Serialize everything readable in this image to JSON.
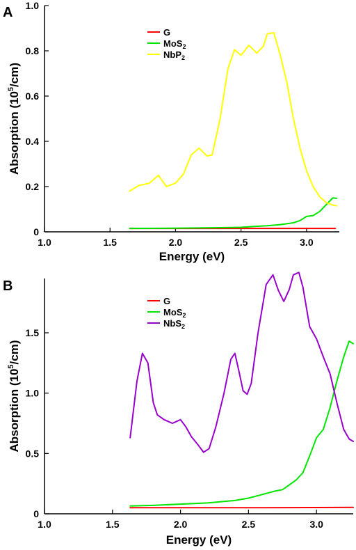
{
  "chart_data": [
    {
      "panel": "A",
      "type": "line",
      "xlabel": "Energy (eV)",
      "ylabel_base": "Absorption (10",
      "ylabel_exp": "5",
      "ylabel_tail": "/cm)",
      "xlim": [
        1.0,
        3.25
      ],
      "ylim": [
        0,
        1.0
      ],
      "xticks": [
        1.0,
        1.5,
        2.0,
        2.5,
        3.0
      ],
      "yticks": [
        0,
        0.2,
        0.4,
        0.6,
        0.8,
        1.0
      ],
      "xtick_labels": [
        "1.0",
        "1.5",
        "2.0",
        "2.5",
        "3.0"
      ],
      "ytick_labels": [
        "0",
        "0.2",
        "0.4",
        "0.6",
        "0.8",
        "1.0"
      ],
      "legend_position": "top-left-inside",
      "series": [
        {
          "name": "G",
          "name_sub": "",
          "color": "#ff0000",
          "points": [
            [
              1.65,
              0.015
            ],
            [
              2.0,
              0.015
            ],
            [
              2.5,
              0.015
            ],
            [
              3.0,
              0.015
            ],
            [
              3.22,
              0.015
            ]
          ]
        },
        {
          "name": "MoS",
          "name_sub": "2",
          "color": "#00e600",
          "points": [
            [
              1.65,
              0.015
            ],
            [
              2.0,
              0.016
            ],
            [
              2.3,
              0.018
            ],
            [
              2.5,
              0.02
            ],
            [
              2.6,
              0.024
            ],
            [
              2.7,
              0.027
            ],
            [
              2.8,
              0.032
            ],
            [
              2.9,
              0.04
            ],
            [
              2.95,
              0.05
            ],
            [
              3.0,
              0.068
            ],
            [
              3.05,
              0.072
            ],
            [
              3.1,
              0.09
            ],
            [
              3.15,
              0.12
            ],
            [
              3.2,
              0.15
            ],
            [
              3.23,
              0.148
            ]
          ]
        },
        {
          "name": "NbP",
          "name_sub": "2",
          "color": "#ffff00",
          "points": [
            [
              1.65,
              0.18
            ],
            [
              1.72,
              0.205
            ],
            [
              1.8,
              0.215
            ],
            [
              1.87,
              0.25
            ],
            [
              1.93,
              0.2
            ],
            [
              2.0,
              0.215
            ],
            [
              2.06,
              0.255
            ],
            [
              2.12,
              0.34
            ],
            [
              2.18,
              0.37
            ],
            [
              2.24,
              0.335
            ],
            [
              2.28,
              0.34
            ],
            [
              2.34,
              0.5
            ],
            [
              2.4,
              0.72
            ],
            [
              2.45,
              0.805
            ],
            [
              2.5,
              0.78
            ],
            [
              2.56,
              0.825
            ],
            [
              2.62,
              0.79
            ],
            [
              2.67,
              0.82
            ],
            [
              2.7,
              0.875
            ],
            [
              2.75,
              0.88
            ],
            [
              2.8,
              0.78
            ],
            [
              2.85,
              0.66
            ],
            [
              2.9,
              0.5
            ],
            [
              2.95,
              0.37
            ],
            [
              3.0,
              0.27
            ],
            [
              3.05,
              0.2
            ],
            [
              3.1,
              0.155
            ],
            [
              3.15,
              0.13
            ],
            [
              3.2,
              0.118
            ],
            [
              3.23,
              0.115
            ]
          ]
        }
      ]
    },
    {
      "panel": "B",
      "type": "line",
      "xlabel": "Energy (eV)",
      "ylabel_base": "Absorption (10",
      "ylabel_exp": "5",
      "ylabel_tail": "/cm)",
      "xlim": [
        1.0,
        3.27
      ],
      "ylim": [
        0,
        1.95
      ],
      "xticks": [
        1.0,
        1.5,
        2.0,
        2.5,
        3.0
      ],
      "yticks": [
        0,
        0.5,
        1.0,
        1.5
      ],
      "xtick_labels": [
        "1.0",
        "1.5",
        "2.0",
        "2.5",
        "3.0"
      ],
      "ytick_labels": [
        "0",
        "0.5",
        "1.0",
        "1.5"
      ],
      "legend_position": "top-left-inside",
      "series": [
        {
          "name": "G",
          "name_sub": "",
          "color": "#ff0000",
          "points": [
            [
              1.63,
              0.05
            ],
            [
              2.0,
              0.05
            ],
            [
              2.5,
              0.05
            ],
            [
              3.0,
              0.052
            ],
            [
              3.27,
              0.053
            ]
          ]
        },
        {
          "name": "MoS",
          "name_sub": "2",
          "color": "#00e600",
          "points": [
            [
              1.63,
              0.065
            ],
            [
              1.8,
              0.07
            ],
            [
              2.0,
              0.08
            ],
            [
              2.2,
              0.09
            ],
            [
              2.4,
              0.11
            ],
            [
              2.5,
              0.13
            ],
            [
              2.6,
              0.16
            ],
            [
              2.7,
              0.19
            ],
            [
              2.75,
              0.2
            ],
            [
              2.8,
              0.24
            ],
            [
              2.85,
              0.28
            ],
            [
              2.9,
              0.34
            ],
            [
              2.95,
              0.48
            ],
            [
              3.0,
              0.63
            ],
            [
              3.05,
              0.7
            ],
            [
              3.1,
              0.88
            ],
            [
              3.15,
              1.1
            ],
            [
              3.2,
              1.3
            ],
            [
              3.24,
              1.43
            ],
            [
              3.27,
              1.41
            ]
          ]
        },
        {
          "name": "NbS",
          "name_sub": "2",
          "color": "#9900cc",
          "points": [
            [
              1.63,
              0.63
            ],
            [
              1.68,
              1.1
            ],
            [
              1.72,
              1.33
            ],
            [
              1.76,
              1.25
            ],
            [
              1.8,
              0.92
            ],
            [
              1.83,
              0.82
            ],
            [
              1.88,
              0.78
            ],
            [
              1.94,
              0.75
            ],
            [
              2.0,
              0.78
            ],
            [
              2.04,
              0.72
            ],
            [
              2.08,
              0.64
            ],
            [
              2.13,
              0.57
            ],
            [
              2.17,
              0.51
            ],
            [
              2.21,
              0.54
            ],
            [
              2.26,
              0.72
            ],
            [
              2.32,
              1.0
            ],
            [
              2.37,
              1.28
            ],
            [
              2.4,
              1.33
            ],
            [
              2.43,
              1.18
            ],
            [
              2.46,
              1.02
            ],
            [
              2.49,
              0.99
            ],
            [
              2.52,
              1.08
            ],
            [
              2.57,
              1.5
            ],
            [
              2.63,
              1.9
            ],
            [
              2.68,
              1.98
            ],
            [
              2.72,
              1.85
            ],
            [
              2.76,
              1.76
            ],
            [
              2.8,
              1.86
            ],
            [
              2.83,
              1.98
            ],
            [
              2.87,
              2.0
            ],
            [
              2.9,
              1.88
            ],
            [
              2.95,
              1.55
            ],
            [
              3.0,
              1.45
            ],
            [
              3.05,
              1.3
            ],
            [
              3.1,
              1.16
            ],
            [
              3.15,
              0.92
            ],
            [
              3.2,
              0.7
            ],
            [
              3.24,
              0.62
            ],
            [
              3.27,
              0.6
            ]
          ]
        }
      ]
    }
  ]
}
